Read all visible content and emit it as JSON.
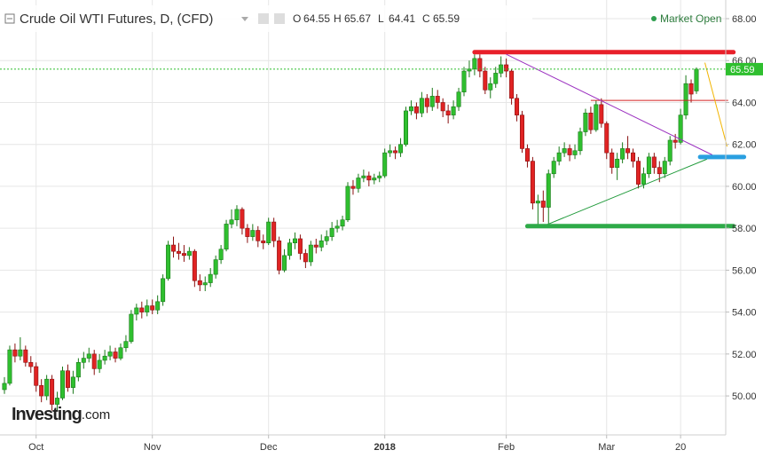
{
  "chart_data": {
    "type": "candlestick",
    "title": "Crude Oil WTI Futures, D, (CFD)",
    "ohlc_labels": [
      "O",
      "H",
      "L",
      "C"
    ],
    "status": "Market Open",
    "logo": "Investing",
    "logo_suffix": ".com",
    "up_color": "#2fbf2f",
    "down_color": "#e02323",
    "grid": true,
    "last_price_line": true,
    "ylim": [
      48.14,
      68.89
    ],
    "yticks": [
      {
        "value": 50,
        "label": "50.00"
      },
      {
        "value": 52,
        "label": "52.00"
      },
      {
        "value": 54,
        "label": "54.00"
      },
      {
        "value": 56,
        "label": "56.00"
      },
      {
        "value": 58,
        "label": "58.00"
      },
      {
        "value": 60,
        "label": "60.00"
      },
      {
        "value": 62,
        "label": "62.00"
      },
      {
        "value": 64,
        "label": "64.00"
      },
      {
        "value": 66,
        "label": "66.00"
      },
      {
        "value": 68,
        "label": "68.00"
      }
    ],
    "categories": [
      null,
      null,
      null,
      null,
      null,
      null,
      "Oct",
      null,
      null,
      null,
      null,
      null,
      null,
      null,
      null,
      null,
      null,
      null,
      null,
      null,
      null,
      null,
      null,
      null,
      null,
      null,
      null,
      null,
      "Nov",
      null,
      null,
      null,
      null,
      null,
      null,
      null,
      null,
      null,
      null,
      null,
      null,
      null,
      null,
      null,
      null,
      null,
      null,
      null,
      null,
      null,
      "Dec",
      null,
      null,
      null,
      null,
      null,
      null,
      null,
      null,
      null,
      null,
      null,
      null,
      null,
      null,
      null,
      null,
      null,
      null,
      null,
      null,
      null,
      "2018",
      null,
      null,
      null,
      null,
      null,
      null,
      null,
      null,
      null,
      null,
      null,
      null,
      null,
      null,
      null,
      null,
      null,
      null,
      null,
      null,
      null,
      null,
      "Feb",
      null,
      null,
      null,
      null,
      null,
      null,
      null,
      null,
      null,
      null,
      null,
      null,
      null,
      null,
      null,
      null,
      null,
      null,
      "Mar",
      null,
      null,
      null,
      null,
      null,
      null,
      null,
      null,
      null,
      null,
      null,
      null,
      null,
      "20",
      null,
      null,
      null
    ],
    "open": [
      50.3,
      50.6,
      52.2,
      51.9,
      52.2,
      51.6,
      51.4,
      50.5,
      50.0,
      50.8,
      49.6,
      49.9,
      51.2,
      50.4,
      50.9,
      51.6,
      51.8,
      52.0,
      51.3,
      51.7,
      51.9,
      52.1,
      51.8,
      52.3,
      52.6,
      53.9,
      54.2,
      54.0,
      54.3,
      54.1,
      54.5,
      55.6,
      57.2,
      56.9,
      56.8,
      56.7,
      56.9,
      55.5,
      55.3,
      55.4,
      55.8,
      56.5,
      57.0,
      58.2,
      58.4,
      58.9,
      58.0,
      57.6,
      57.9,
      57.4,
      57.3,
      58.3,
      57.4,
      56.0,
      56.7,
      57.3,
      57.5,
      56.8,
      56.4,
      57.2,
      57.1,
      57.4,
      57.6,
      58.0,
      58.1,
      58.4,
      60.0,
      59.9,
      60.4,
      60.5,
      60.3,
      60.4,
      60.5,
      61.6,
      61.7,
      61.6,
      62.0,
      63.6,
      63.8,
      63.5,
      64.2,
      63.8,
      64.3,
      64.0,
      63.6,
      63.4,
      63.8,
      64.5,
      65.5,
      65.6,
      66.1,
      65.5,
      64.6,
      64.9,
      65.4,
      65.8,
      65.5,
      64.2,
      63.4,
      61.8,
      61.2,
      59.2,
      59.3,
      59.0,
      60.6,
      61.2,
      61.6,
      61.8,
      61.5,
      61.7,
      62.6,
      63.5,
      62.7,
      63.9,
      63.0,
      61.6,
      60.9,
      61.3,
      61.8,
      61.6,
      61.2,
      60.1,
      60.6,
      61.4,
      60.9,
      60.6,
      61.2,
      62.2,
      62.1,
      63.4,
      64.9,
      64.55
    ],
    "high": [
      50.9,
      52.4,
      52.5,
      52.8,
      52.4,
      51.9,
      51.6,
      50.8,
      51.0,
      51.0,
      50.2,
      51.4,
      51.5,
      51.2,
      51.8,
      52.1,
      52.3,
      52.2,
      52.0,
      52.2,
      52.4,
      52.3,
      52.5,
      52.9,
      54.1,
      54.4,
      54.5,
      54.6,
      54.6,
      54.8,
      55.8,
      57.4,
      57.6,
      57.3,
      57.2,
      57.1,
      57.0,
      55.8,
      55.7,
      56.1,
      56.7,
      57.2,
      58.4,
      58.9,
      59.1,
      59.0,
      58.2,
      58.2,
      58.1,
      57.7,
      58.5,
      58.5,
      57.6,
      57.0,
      57.5,
      57.8,
      57.7,
      57.0,
      57.4,
      57.5,
      57.7,
      57.9,
      58.3,
      58.4,
      58.6,
      60.2,
      60.3,
      60.6,
      60.8,
      60.7,
      60.6,
      60.7,
      61.8,
      62.0,
      61.9,
      62.3,
      63.8,
      64.1,
      64.0,
      64.5,
      64.4,
      64.7,
      64.6,
      64.2,
      63.9,
      64.1,
      64.7,
      65.7,
      66.0,
      66.3,
      66.3,
      65.7,
      65.2,
      65.7,
      66.2,
      66.1,
      65.6,
      64.4,
      63.6,
      62.0,
      61.4,
      59.6,
      59.8,
      60.8,
      61.4,
      61.9,
      62.1,
      62.0,
      62.0,
      62.8,
      63.7,
      63.8,
      64.1,
      64.2,
      63.1,
      61.8,
      61.6,
      62.1,
      62.4,
      61.8,
      61.4,
      60.9,
      61.6,
      61.6,
      61.2,
      61.4,
      62.4,
      62.5,
      63.7,
      65.3,
      65.1,
      65.67
    ],
    "low": [
      50.1,
      50.5,
      51.6,
      51.7,
      51.4,
      51.1,
      50.2,
      49.7,
      49.8,
      49.3,
      49.3,
      49.8,
      50.2,
      50.1,
      50.7,
      51.3,
      51.6,
      51.0,
      51.1,
      51.5,
      51.7,
      51.6,
      51.7,
      52.1,
      52.5,
      53.6,
      53.7,
      53.8,
      53.9,
      53.9,
      54.3,
      55.5,
      56.6,
      56.5,
      56.4,
      56.5,
      55.2,
      55.0,
      55.0,
      55.2,
      55.6,
      56.3,
      56.9,
      58.0,
      58.1,
      57.7,
      57.3,
      57.4,
      57.1,
      57.0,
      57.2,
      57.1,
      55.8,
      55.9,
      56.5,
      57.0,
      56.5,
      56.1,
      56.2,
      56.8,
      56.9,
      57.2,
      57.4,
      57.8,
      57.9,
      58.3,
      59.6,
      59.7,
      60.2,
      60.0,
      60.1,
      60.2,
      60.4,
      61.4,
      61.3,
      61.4,
      61.9,
      63.4,
      63.2,
      63.3,
      63.5,
      63.6,
      63.7,
      63.3,
      63.0,
      63.2,
      63.6,
      64.3,
      65.2,
      65.3,
      65.2,
      64.4,
      64.2,
      64.7,
      65.2,
      65.2,
      63.9,
      63.1,
      61.6,
      60.9,
      58.9,
      58.1,
      58.3,
      58.2,
      60.4,
      61.0,
      61.4,
      61.2,
      61.3,
      61.5,
      62.4,
      62.5,
      62.6,
      62.8,
      61.3,
      60.6,
      60.3,
      61.1,
      61.3,
      60.9,
      59.9,
      59.9,
      60.4,
      60.6,
      60.2,
      60.4,
      61.0,
      61.8,
      62.0,
      63.2,
      64.0,
      64.41
    ],
    "close": [
      50.6,
      52.2,
      51.9,
      52.2,
      51.6,
      51.4,
      50.5,
      50.0,
      50.8,
      49.6,
      49.9,
      51.2,
      50.4,
      50.9,
      51.6,
      51.8,
      52.0,
      51.3,
      51.7,
      51.9,
      52.1,
      51.8,
      52.3,
      52.6,
      53.9,
      54.2,
      54.0,
      54.3,
      54.1,
      54.5,
      55.6,
      57.2,
      56.9,
      56.8,
      56.7,
      56.9,
      55.5,
      55.3,
      55.4,
      55.8,
      56.5,
      57.0,
      58.2,
      58.4,
      58.9,
      58.0,
      57.6,
      57.9,
      57.4,
      57.3,
      58.3,
      57.4,
      56.0,
      56.7,
      57.3,
      57.5,
      56.8,
      56.4,
      57.2,
      57.1,
      57.4,
      57.6,
      58.0,
      58.1,
      58.4,
      60.0,
      59.9,
      60.4,
      60.5,
      60.3,
      60.4,
      60.5,
      61.6,
      61.7,
      61.6,
      62.0,
      63.6,
      63.8,
      63.5,
      64.2,
      63.8,
      64.3,
      64.0,
      63.6,
      63.4,
      63.8,
      64.5,
      65.5,
      65.6,
      66.1,
      65.5,
      64.6,
      64.9,
      65.4,
      65.8,
      65.5,
      64.2,
      63.4,
      61.8,
      61.2,
      59.2,
      59.3,
      59.0,
      60.6,
      61.2,
      61.6,
      61.8,
      61.5,
      61.7,
      62.6,
      63.5,
      62.7,
      63.9,
      63.0,
      61.6,
      60.9,
      61.3,
      61.8,
      61.6,
      61.2,
      60.1,
      60.6,
      61.4,
      60.9,
      60.6,
      61.2,
      62.2,
      62.1,
      63.4,
      64.9,
      64.4,
      65.59
    ],
    "drawings": [
      {
        "color": "#e8202a",
        "thick": true,
        "x": [
          89,
          138
        ],
        "y": [
          66.4,
          66.4
        ]
      },
      {
        "color": "#d42020",
        "thick": false,
        "x": [
          111,
          137
        ],
        "y": [
          64.1,
          64.1
        ]
      },
      {
        "color": "#9b30c0",
        "thick": false,
        "x": [
          95,
          134
        ],
        "y": [
          66.3,
          61.5
        ]
      },
      {
        "color": "#1f9a3a",
        "thick": false,
        "x": [
          102,
          133
        ],
        "y": [
          58.1,
          61.3
        ]
      },
      {
        "color": "#2eaa48",
        "thick": true,
        "x": [
          99,
          138
        ],
        "y": [
          58.1,
          58.1
        ]
      },
      {
        "color": "#2a9fe0",
        "thick": true,
        "x": [
          131.7,
          140
        ],
        "y": [
          61.4,
          61.4
        ]
      },
      {
        "color": "#f2b400",
        "thick": false,
        "x": [
          132.6,
          136.8
        ],
        "y": [
          65.9,
          61.9
        ]
      }
    ]
  }
}
